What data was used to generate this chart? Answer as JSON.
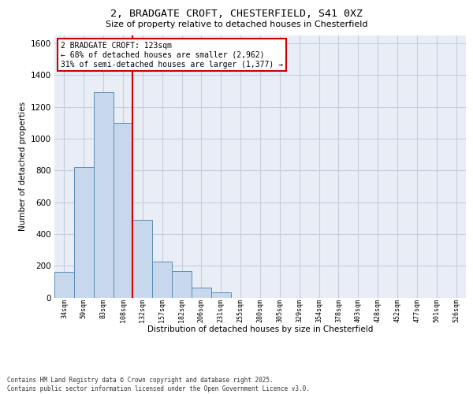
{
  "title_line1": "2, BRADGATE CROFT, CHESTERFIELD, S41 0XZ",
  "title_line2": "Size of property relative to detached houses in Chesterfield",
  "xlabel": "Distribution of detached houses by size in Chesterfield",
  "ylabel": "Number of detached properties",
  "categories": [
    "34sqm",
    "59sqm",
    "83sqm",
    "108sqm",
    "132sqm",
    "157sqm",
    "182sqm",
    "206sqm",
    "231sqm",
    "255sqm",
    "280sqm",
    "305sqm",
    "329sqm",
    "354sqm",
    "378sqm",
    "403sqm",
    "428sqm",
    "452sqm",
    "477sqm",
    "501sqm",
    "526sqm"
  ],
  "values": [
    160,
    820,
    1295,
    1100,
    490,
    225,
    165,
    60,
    30,
    0,
    0,
    0,
    0,
    0,
    0,
    0,
    0,
    0,
    0,
    0,
    0
  ],
  "bar_color": "#c8d8ec",
  "bar_edge_color": "#5b8db8",
  "vline_color": "#cc0000",
  "vline_pos": 3.5,
  "annotation_text": "2 BRADGATE CROFT: 123sqm\n← 68% of detached houses are smaller (2,962)\n31% of semi-detached houses are larger (1,377) →",
  "ylim_max": 1650,
  "yticks": [
    0,
    200,
    400,
    600,
    800,
    1000,
    1200,
    1400,
    1600
  ],
  "grid_color": "#c5cedd",
  "footer": "Contains HM Land Registry data © Crown copyright and database right 2025.\nContains public sector information licensed under the Open Government Licence v3.0.",
  "bg_color": "#e8edf6"
}
